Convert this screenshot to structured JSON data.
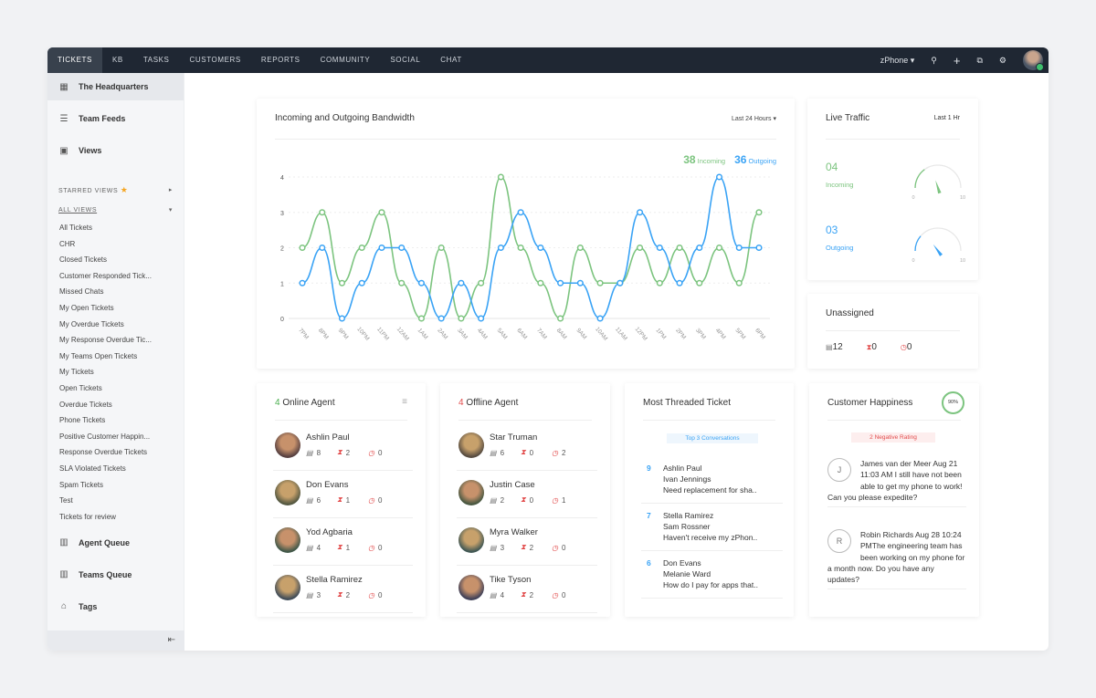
{
  "nav": {
    "tabs": [
      "TICKETS",
      "KB",
      "TASKS",
      "CUSTOMERS",
      "REPORTS",
      "COMMUNITY",
      "SOCIAL",
      "CHAT"
    ],
    "active": "TICKETS",
    "portal": "zPhone"
  },
  "sidebar": {
    "main": [
      {
        "label": "The Headquarters",
        "icon": "grid-icon"
      },
      {
        "label": "Team Feeds",
        "icon": "feed-icon"
      },
      {
        "label": "Views",
        "icon": "views-icon"
      }
    ],
    "starred": "STARRED VIEWS",
    "all_views": "ALL VIEWS",
    "views": [
      "All Tickets",
      "CHR",
      "Closed Tickets",
      "Customer Responded Tick...",
      "Missed Chats",
      "My Open Tickets",
      "My Overdue Tickets",
      "My Response Overdue Tic...",
      "My Teams Open Tickets",
      "My Tickets",
      "Open Tickets",
      "Overdue Tickets",
      "Phone Tickets",
      "Positive Customer Happin...",
      "Response Overdue Tickets",
      "SLA Violated Tickets",
      "Spam Tickets",
      "Test",
      "Tickets for review"
    ],
    "bottom": [
      {
        "label": "Agent Queue",
        "icon": "agent-queue-icon"
      },
      {
        "label": "Teams Queue",
        "icon": "teams-queue-icon"
      },
      {
        "label": "Tags",
        "icon": "tags-icon"
      }
    ]
  },
  "bandwidth": {
    "title": "Incoming and Outgoing Bandwidth",
    "range": "Last 24 Hours",
    "incoming_total": "38",
    "incoming_label": "Incoming",
    "outgoing_total": "36",
    "outgoing_label": "Outgoing"
  },
  "chart_data": {
    "type": "line",
    "ylim": [
      0,
      4
    ],
    "yticks": [
      "0",
      "1",
      "2",
      "3",
      "4"
    ],
    "grid": true,
    "x": [
      "7PM",
      "8PM",
      "9PM",
      "10PM",
      "11PM",
      "12AM",
      "1AM",
      "2AM",
      "3AM",
      "4AM",
      "5AM",
      "6AM",
      "7AM",
      "8AM",
      "9AM",
      "10AM",
      "11AM",
      "12PM",
      "1PM",
      "2PM",
      "3PM",
      "4PM",
      "5PM",
      "6PM"
    ],
    "series": [
      {
        "name": "Incoming",
        "color": "#7cc47f",
        "values": [
          2,
          3,
          1,
          2,
          3,
          1,
          0,
          2,
          0,
          1,
          4,
          2,
          1,
          0,
          2,
          1,
          1,
          2,
          1,
          2,
          1,
          2,
          1,
          3
        ]
      },
      {
        "name": "Outgoing",
        "color": "#3aa3f5",
        "values": [
          1,
          2,
          0,
          1,
          2,
          2,
          1,
          0,
          1,
          0,
          2,
          3,
          2,
          1,
          1,
          0,
          1,
          3,
          2,
          1,
          2,
          4,
          2,
          2
        ]
      }
    ]
  },
  "live": {
    "title": "Live Traffic",
    "range": "Last 1 Hr",
    "incoming": {
      "value": "04",
      "label": "Incoming",
      "level": 4
    },
    "outgoing": {
      "value": "03",
      "label": "Outgoing",
      "level": 3
    },
    "min": "0",
    "max": "10"
  },
  "unassigned": {
    "title": "Unassigned",
    "tickets": "12",
    "overdue": "0",
    "due": "0"
  },
  "online": {
    "count": "4",
    "title": "Online Agent",
    "agents": [
      {
        "name": "Ashlin Paul",
        "t": "8",
        "h": "2",
        "c": "0"
      },
      {
        "name": "Don Evans",
        "t": "6",
        "h": "1",
        "c": "0"
      },
      {
        "name": "Yod Agbaria",
        "t": "4",
        "h": "1",
        "c": "0"
      },
      {
        "name": "Stella Ramirez",
        "t": "3",
        "h": "2",
        "c": "0"
      }
    ]
  },
  "offline": {
    "count": "4",
    "title": "Offline Agent",
    "agents": [
      {
        "name": "Star Truman",
        "t": "6",
        "h": "0",
        "c": "2"
      },
      {
        "name": "Justin Case",
        "t": "2",
        "h": "0",
        "c": "1"
      },
      {
        "name": "Myra Walker",
        "t": "3",
        "h": "2",
        "c": "0"
      },
      {
        "name": "Tike Tyson",
        "t": "4",
        "h": "2",
        "c": "0"
      }
    ]
  },
  "threaded": {
    "title": "Most Threaded Ticket",
    "badge": "Top 3 Conversations",
    "items": [
      {
        "n": "9",
        "agent": "Ashlin Paul",
        "customer": "Ivan Jennings",
        "subject": "Need replacement for sha.."
      },
      {
        "n": "7",
        "agent": "Stella Ramirez",
        "customer": "Sam Rossner",
        "subject": "Haven't receive my zPhon.."
      },
      {
        "n": "6",
        "agent": "Don Evans",
        "customer": "Melanie Ward",
        "subject": "How do I pay for apps that.."
      }
    ]
  },
  "happiness": {
    "title": "Customer Happiness",
    "percent": "90%",
    "badge": "2  Negative Rating",
    "items": [
      {
        "initial": "J",
        "text": "James van der Meer Aug 21 11:03 AM I still have not been able to get my phone to work! Can you please expedite?"
      },
      {
        "initial": "R",
        "text": "Robin Richards  Aug 28 10:24 PMThe engineering team has been working on my phone for a month now. Do you have any updates?"
      }
    ]
  }
}
